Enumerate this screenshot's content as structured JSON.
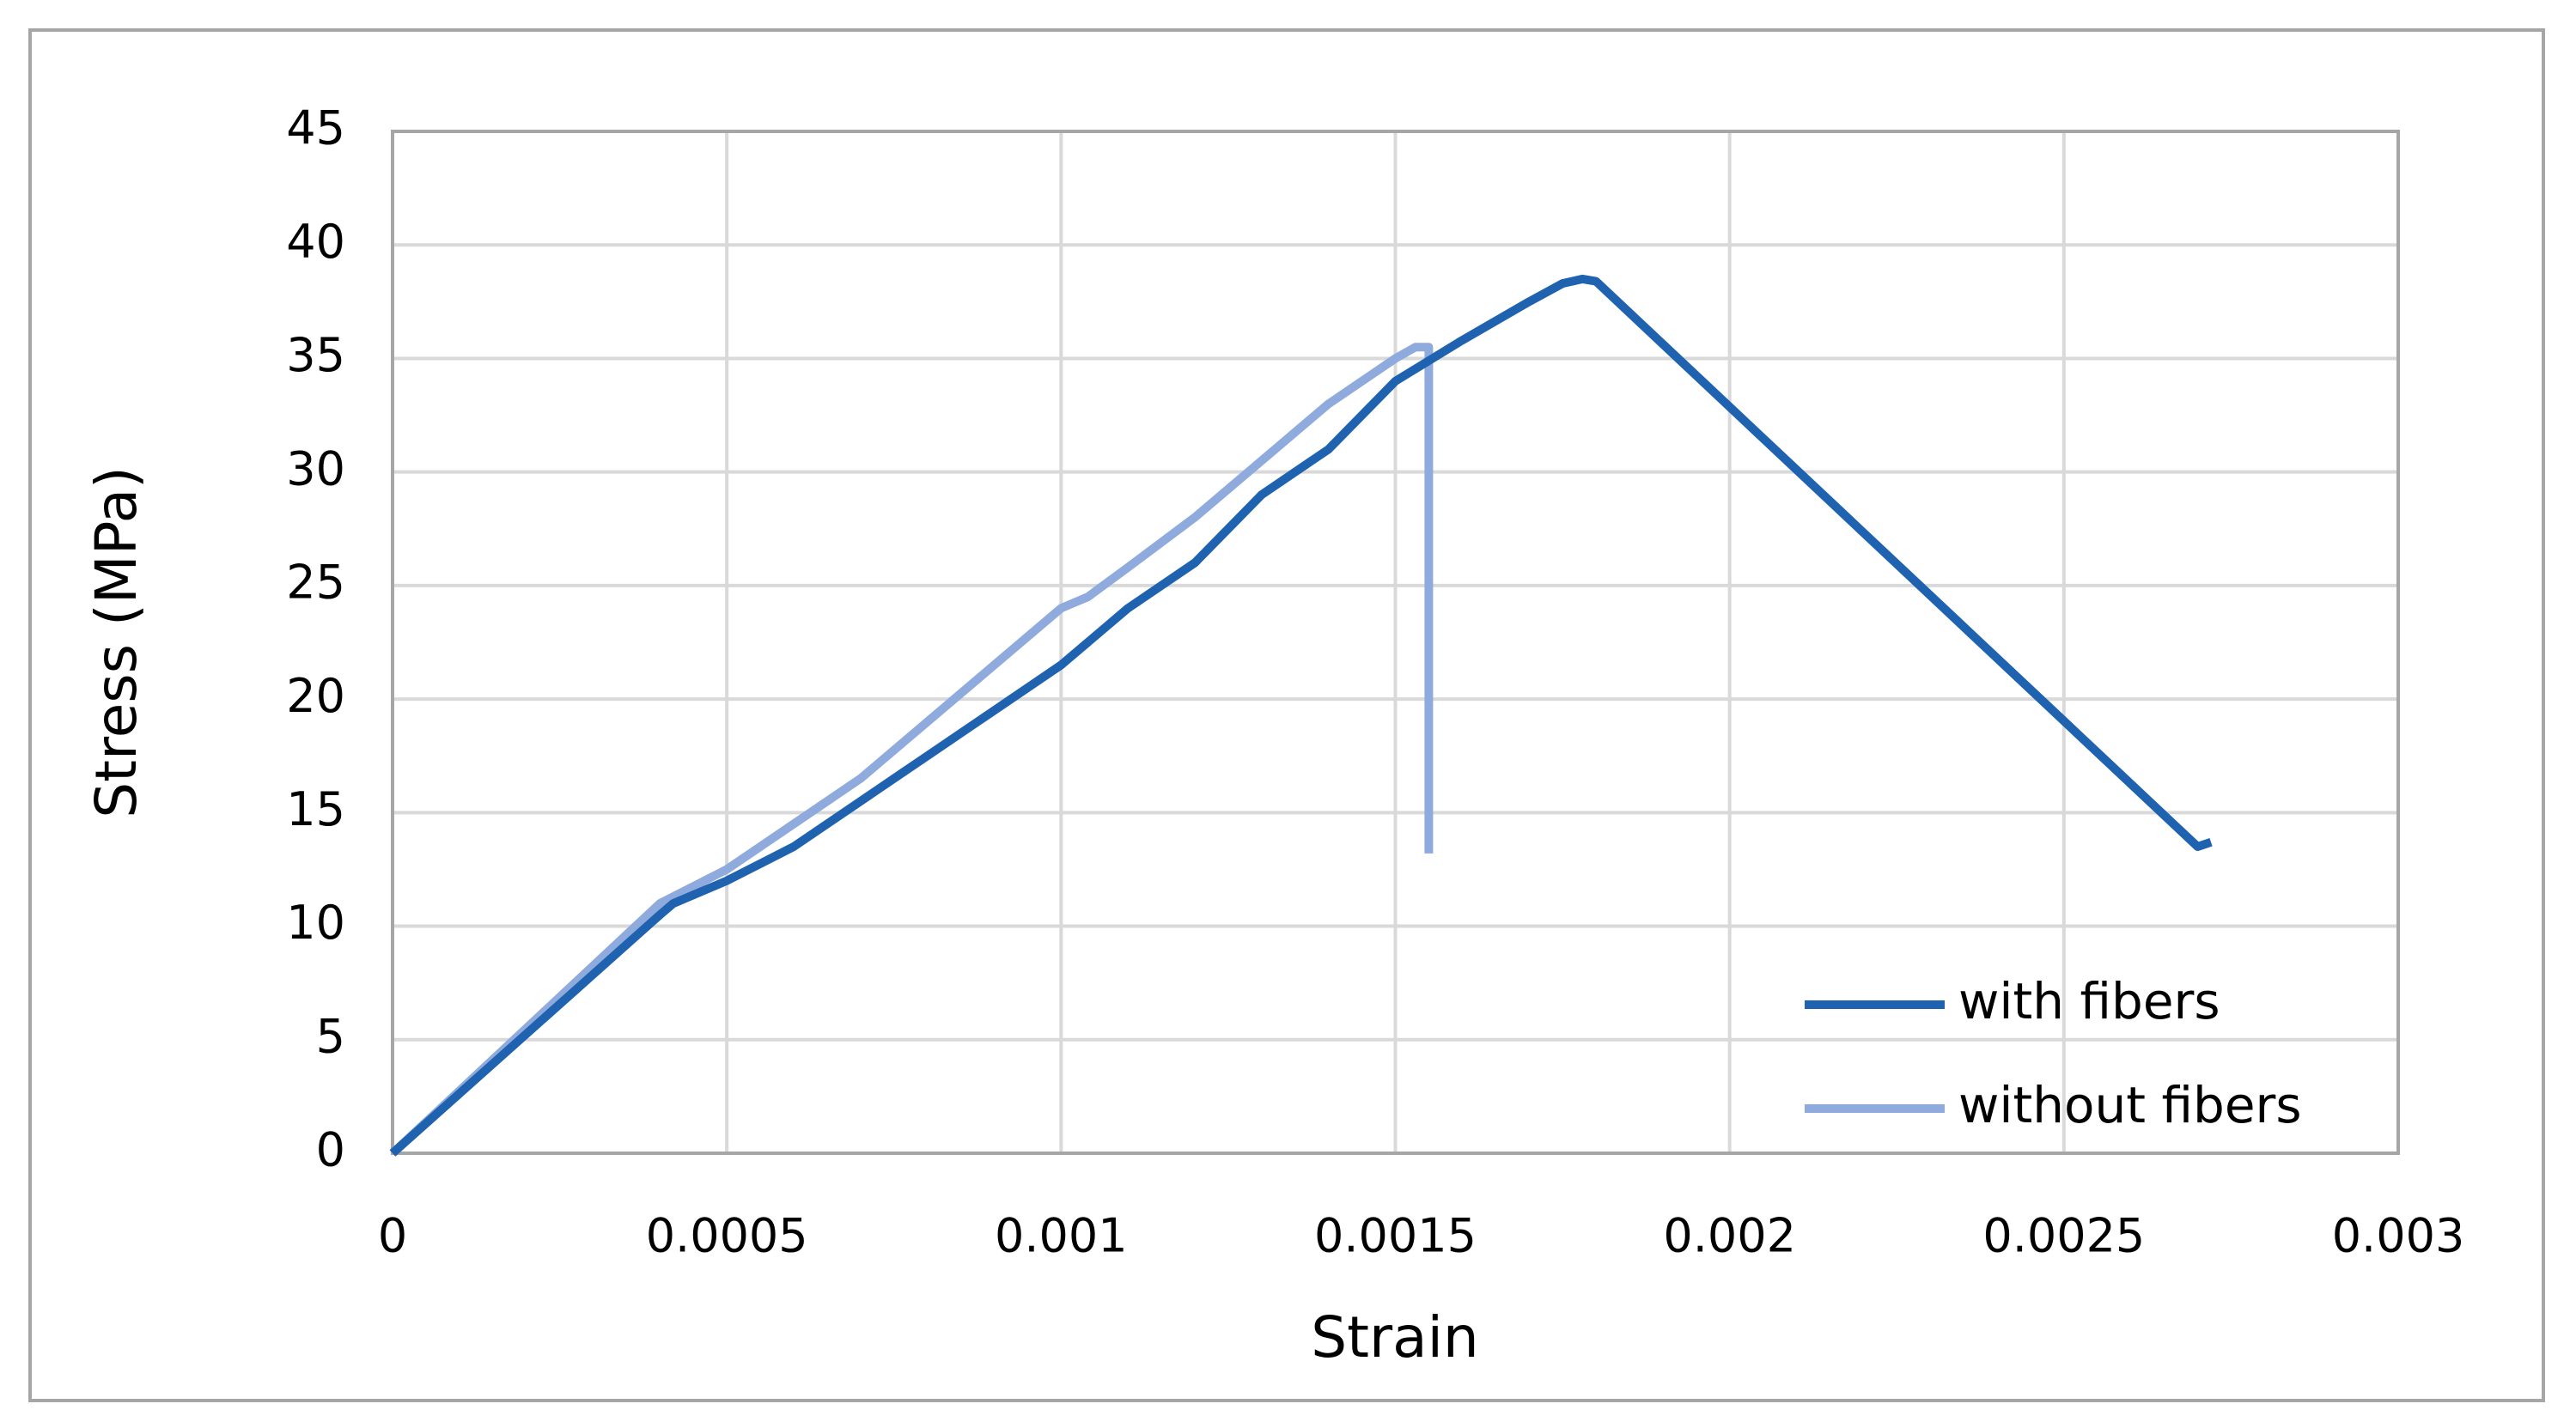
{
  "chart_data": {
    "type": "line",
    "x_label": "Strain",
    "y_label": "Stress (MPa)",
    "xlim": [
      0,
      0.003
    ],
    "xticks": [
      0,
      0.0005,
      0.001,
      0.0015,
      0.002,
      0.0025,
      0.003
    ],
    "ylim": [
      0,
      45
    ],
    "yticks": [
      0,
      5,
      10,
      15,
      20,
      25,
      30,
      35,
      40,
      45
    ],
    "grid": true,
    "legend": "lower right",
    "series": [
      {
        "name": "with fibers",
        "color": "#1f63b0",
        "x": [
          0,
          0.0004,
          0.00042,
          0.0005,
          0.0006,
          0.0007,
          0.00075,
          0.0008,
          0.0009,
          0.001,
          0.0011,
          0.0012,
          0.0013,
          0.0014,
          0.0015,
          0.0016,
          0.0017,
          0.00175,
          0.00178,
          0.0018,
          0.0027,
          0.00272
        ],
        "values": [
          0,
          10.5,
          11,
          12,
          13.5,
          15.5,
          16.5,
          17.5,
          19.5,
          21.5,
          24,
          26,
          29,
          31,
          34,
          35.8,
          37.5,
          38.3,
          38.5,
          38.4,
          13.5,
          13.7
        ]
      },
      {
        "name": "without fibers",
        "color": "#8faadc",
        "x": [
          0,
          0.0004,
          0.0005,
          0.0006,
          0.0007,
          0.0008,
          0.0009,
          0.001,
          0.00104,
          0.0011,
          0.0012,
          0.0013,
          0.0014,
          0.0015,
          0.00153,
          0.00155,
          0.00155
        ],
        "values": [
          0,
          11,
          12.5,
          14.5,
          16.5,
          19,
          21.5,
          24,
          24.5,
          25.8,
          28,
          30.5,
          33,
          35,
          35.5,
          35.5,
          13.2
        ]
      }
    ]
  }
}
